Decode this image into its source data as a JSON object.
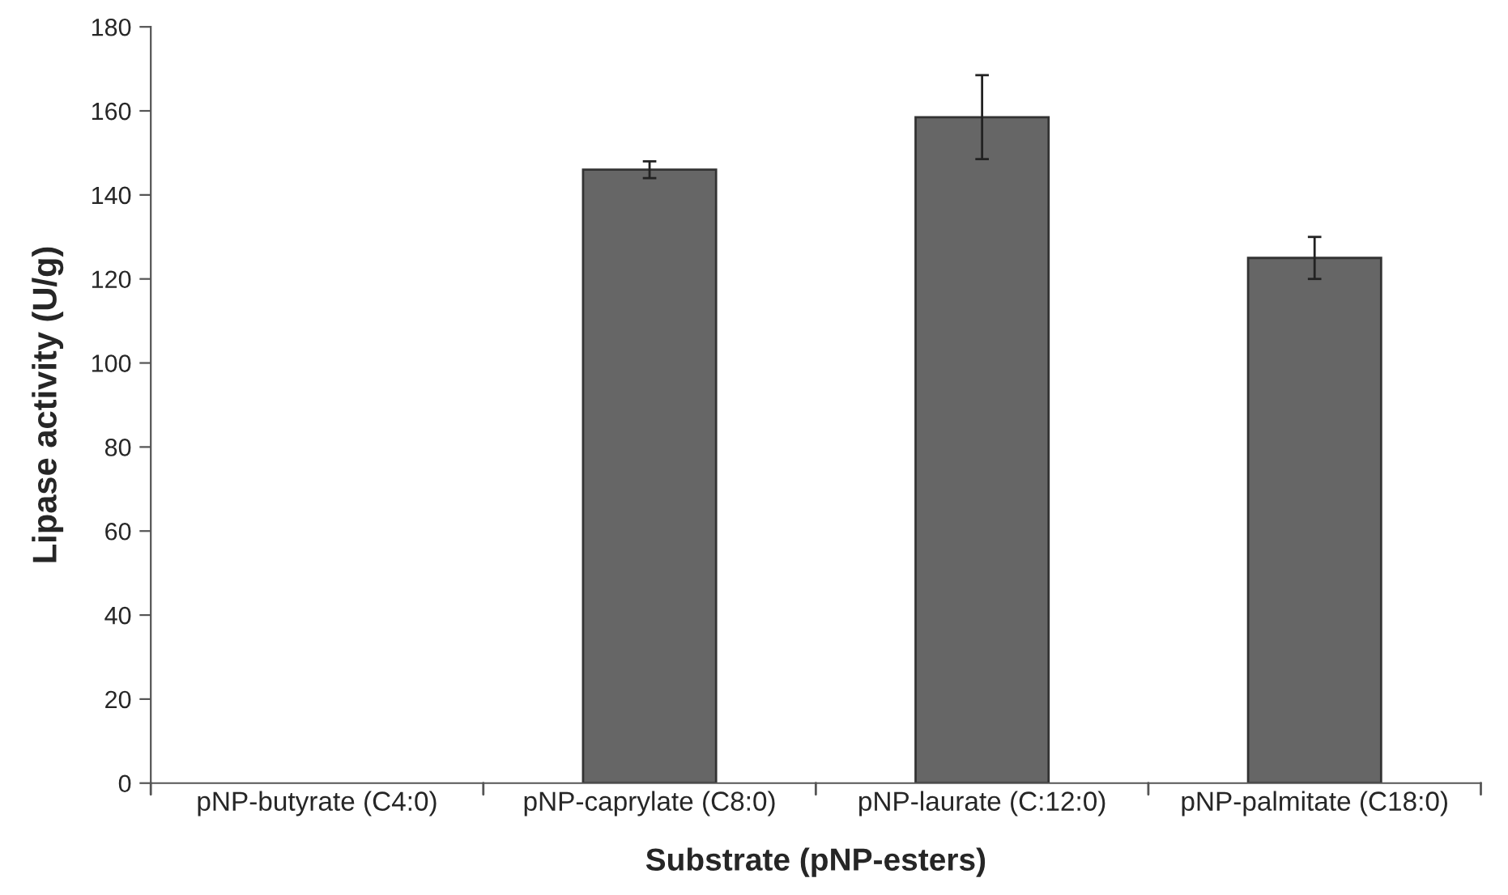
{
  "chart_data": {
    "type": "bar",
    "xlabel": "Substrate (pNP-esters)",
    "ylabel": "Lipase activity (U/g)",
    "categories": [
      "pNP-butyrate (C4:0)",
      "pNP-caprylate (C8:0)",
      "pNP-laurate (C:12:0)",
      "pNP-palmitate (C18:0)"
    ],
    "values": [
      null,
      146,
      158.5,
      125
    ],
    "errors": [
      null,
      2,
      10,
      5
    ],
    "color": "#666666",
    "ylim": [
      0,
      180
    ],
    "yticks": [
      0,
      20,
      40,
      60,
      80,
      100,
      120,
      140,
      160,
      180
    ],
    "grid": false
  }
}
